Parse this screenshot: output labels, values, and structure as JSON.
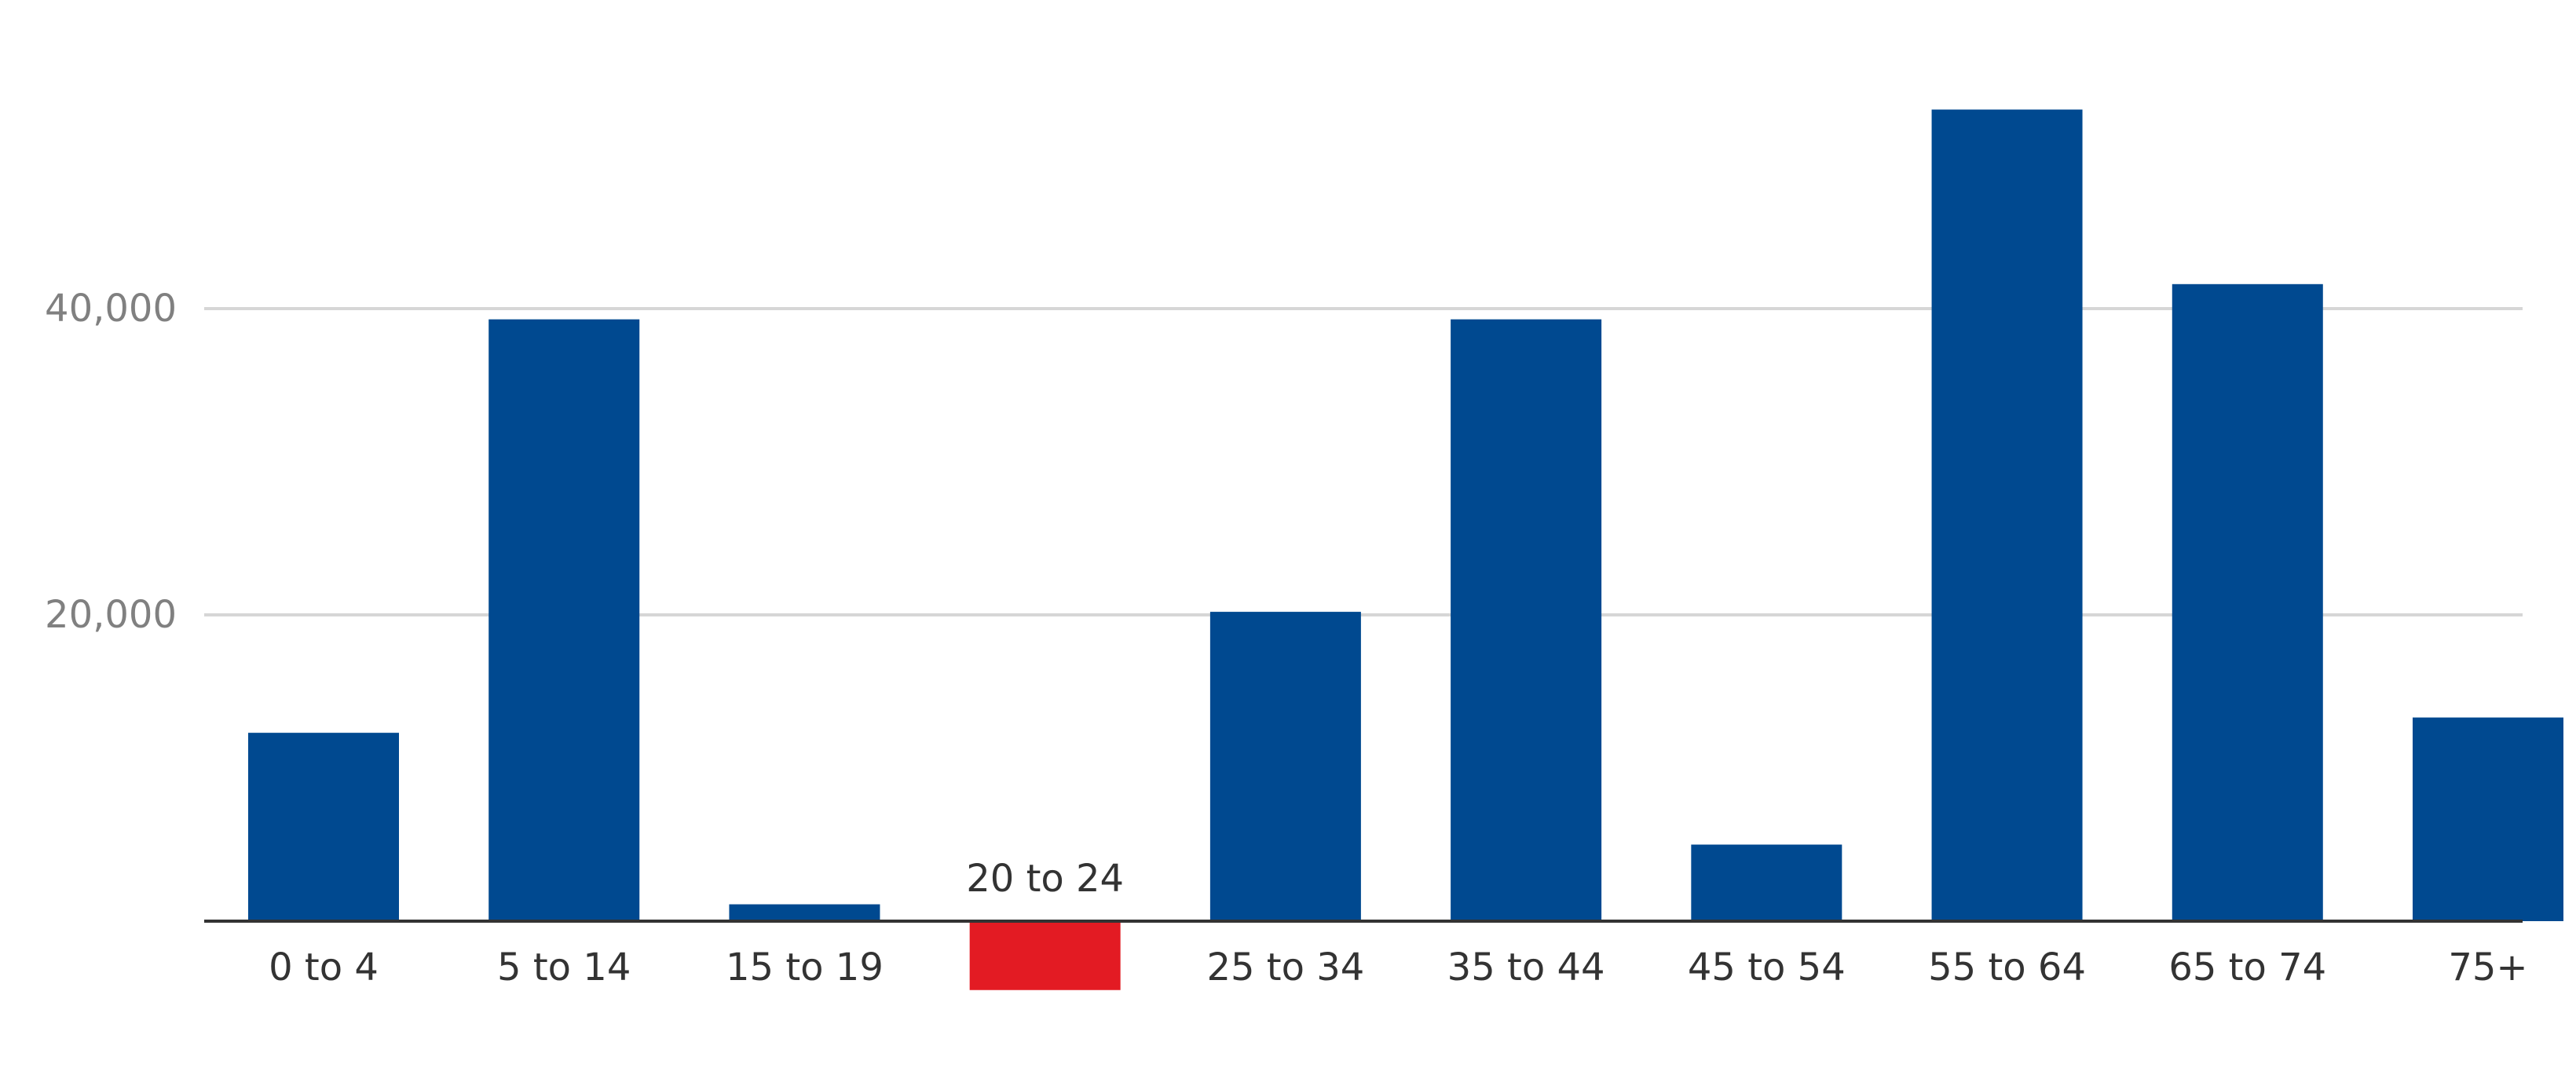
{
  "chart_data": {
    "type": "bar",
    "categories": [
      "0 to 4",
      "5 to 14",
      "15 to 19",
      "20 to 24",
      "25 to 34",
      "35 to 44",
      "45 to 54",
      "55 to 64",
      "65 to 74",
      "75+"
    ],
    "values": [
      12300,
      39300,
      1100,
      -4500,
      20200,
      39300,
      5000,
      53000,
      41600,
      13300
    ],
    "title": "",
    "xlabel": "",
    "ylabel": "",
    "ylim": [
      -6000,
      58000
    ],
    "yticks": [
      {
        "value": 20000,
        "label": "20,000"
      },
      {
        "value": 40000,
        "label": "40,000"
      }
    ],
    "grid": true,
    "legend": "none",
    "colors": {
      "positive": "#004990",
      "negative": "#e31b23",
      "gridline": "#d6d6d6",
      "axis": "#333333"
    }
  }
}
